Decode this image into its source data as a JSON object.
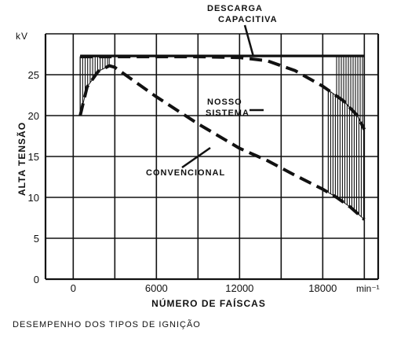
{
  "chart_data": {
    "type": "line",
    "title": "",
    "caption": "DESEMPENHO DOS TIPOS DE IGNIÇÃO",
    "xlabel": "NÚMERO DE FAÍSCAS",
    "ylabel": "ALTA TENSÃO",
    "yunit": "kV",
    "xunit": "min⁻¹",
    "xlim": [
      -2000,
      22000
    ],
    "ylim": [
      0,
      30
    ],
    "x_ticks": [
      0,
      6000,
      12000,
      18000
    ],
    "x_tick_labels": [
      "0",
      "6000",
      "12000",
      "18000"
    ],
    "y_ticks": [
      0,
      5,
      10,
      15,
      20,
      25
    ],
    "y_tick_labels": [
      "0",
      "5",
      "10",
      "15",
      "20",
      "25"
    ],
    "grid": true,
    "annotations": [
      {
        "text": "DESCARGA CAPACITIVA",
        "series": "descarga"
      },
      {
        "text": "NOSSO SISTEMA",
        "series": "nosso"
      },
      {
        "text": "CONVENCIONAL",
        "series": "convencional"
      }
    ],
    "series": [
      {
        "key": "descarga",
        "style": "solid",
        "x": [
          500,
          4000,
          8000,
          12000,
          16000,
          19000,
          21000
        ],
        "y": [
          27.3,
          27.3,
          27.3,
          27.3,
          27.3,
          27.3,
          27.3
        ]
      },
      {
        "key": "nosso",
        "style": "dashed",
        "x": [
          500,
          1000,
          2000,
          3000,
          5000,
          9000,
          12000,
          14000,
          16000,
          18000,
          19500,
          20500,
          21000
        ],
        "y": [
          27.2,
          27.2,
          27.2,
          27.2,
          27.2,
          27.2,
          27.1,
          26.7,
          25.5,
          23.6,
          21.8,
          20.0,
          18.3
        ]
      },
      {
        "key": "convencional",
        "style": "dashed",
        "x": [
          500,
          1000,
          1800,
          2600,
          3000,
          6000,
          9000,
          12000,
          14000,
          16000,
          18000,
          19000,
          20000,
          21000
        ],
        "y": [
          20.0,
          23.5,
          25.4,
          26.1,
          25.9,
          22.3,
          19.0,
          16.0,
          14.5,
          12.7,
          11.0,
          10.0,
          8.8,
          7.3
        ]
      }
    ]
  }
}
